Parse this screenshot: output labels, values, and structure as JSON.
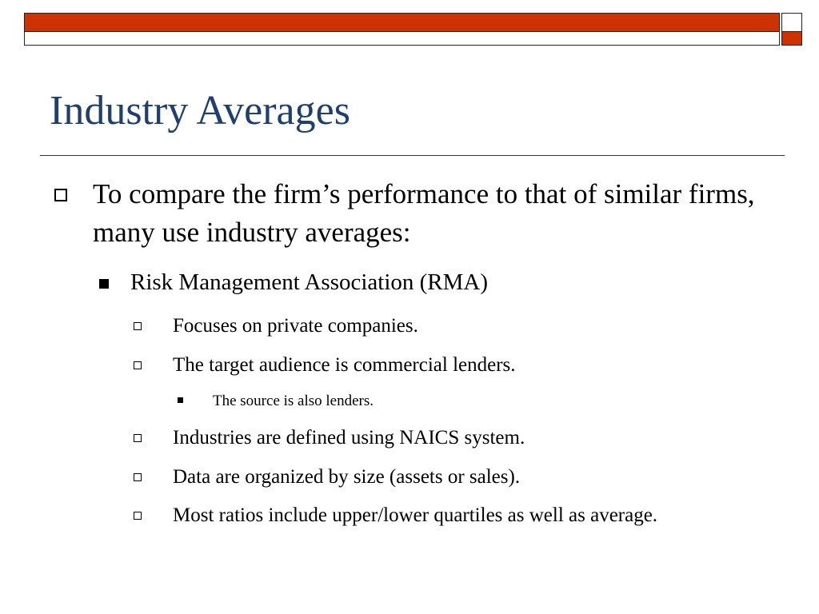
{
  "slide": {
    "title": "Industry Averages",
    "bullets": {
      "level1": "To compare the firm’s performance to that of similar firms, many use industry averages:",
      "level2": "Risk Management Association (RMA)",
      "level3": [
        "Focuses on private companies.",
        "The target audience is commercial lenders.",
        "Industries are defined using NAICS system.",
        "Data are organized by size (assets or sales).",
        "Most ratios include upper/lower quartiles as well as average."
      ],
      "level4": "The source is also lenders."
    }
  },
  "colors": {
    "title": "#1f3f6f",
    "accent": "#cc3300"
  }
}
